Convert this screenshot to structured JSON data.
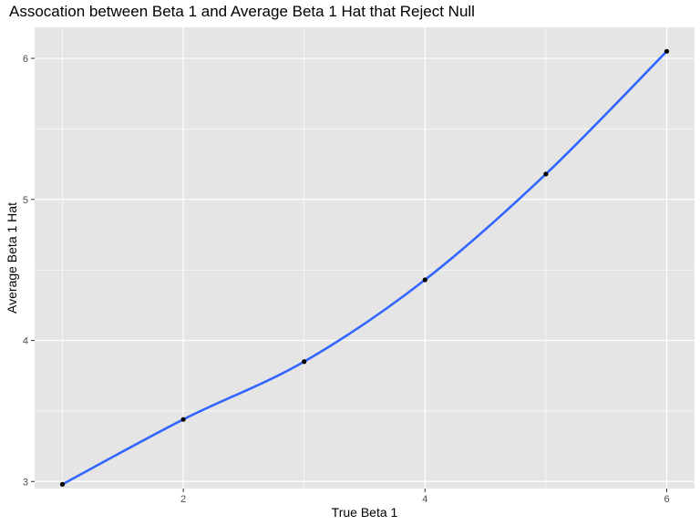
{
  "chart_data": {
    "type": "line",
    "title": "Assocation between Beta 1 and Average Beta 1 Hat that Reject Null",
    "xlabel": "True Beta 1",
    "ylabel": "Average Beta 1 Hat",
    "x_ticks": [
      2,
      4,
      6
    ],
    "y_ticks": [
      3,
      4,
      5,
      6
    ],
    "xlim": [
      0.77,
      6.23
    ],
    "ylim": [
      2.95,
      6.22
    ],
    "grid": true,
    "legend": "none",
    "series": [
      {
        "x": [
          1,
          2,
          3,
          4,
          5,
          6
        ],
        "y": [
          2.98,
          3.44,
          3.85,
          4.43,
          5.18,
          6.05
        ]
      }
    ],
    "colors": {
      "panel_background": "#e5e5e5",
      "grid": "#ffffff",
      "smooth_line": "#3366ff",
      "points": "#000000"
    }
  }
}
